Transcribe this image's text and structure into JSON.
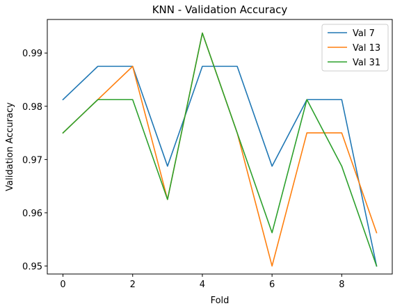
{
  "chart_data": {
    "type": "line",
    "title": "KNN - Validation Accuracy",
    "xlabel": "Fold",
    "ylabel": "Validation Accuracy",
    "x": [
      0,
      1,
      2,
      3,
      4,
      5,
      6,
      7,
      8,
      9
    ],
    "xlim": [
      -0.45,
      9.45
    ],
    "ylim": [
      0.9485,
      0.9963
    ],
    "xticks": [
      0,
      2,
      4,
      6,
      8
    ],
    "yticks": [
      0.95,
      0.96,
      0.97,
      0.98,
      0.99
    ],
    "ytick_labels": [
      "0.95",
      "0.96",
      "0.97",
      "0.98",
      "0.99"
    ],
    "grid": false,
    "legend_position": "top-right",
    "series": [
      {
        "name": "Val 7",
        "color": "#1f77b4",
        "values": [
          0.98125,
          0.9875,
          0.9875,
          0.96875,
          0.9875,
          0.9875,
          0.96875,
          0.98125,
          0.98125,
          0.95
        ]
      },
      {
        "name": "Val 13",
        "color": "#ff7f0e",
        "values": [
          0.975,
          0.98125,
          0.9875,
          0.9625,
          0.99375,
          0.975,
          0.95,
          0.975,
          0.975,
          0.95625
        ]
      },
      {
        "name": "Val 31",
        "color": "#2ca02c",
        "values": [
          0.975,
          0.98125,
          0.98125,
          0.9625,
          0.99375,
          0.975,
          0.95625,
          0.98125,
          0.96875,
          0.95
        ]
      }
    ]
  }
}
